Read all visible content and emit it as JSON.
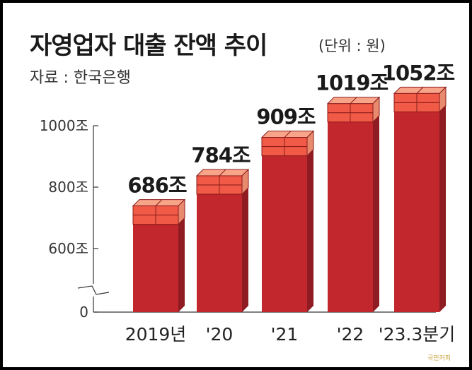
{
  "title": "자영업자 대출 잔액 추이",
  "unit_note": "(단위 : 원)",
  "source": "자료 : 한국은행",
  "credit": "국민커피",
  "colors": {
    "bar_front": "#c1272d",
    "bar_top": "#d84047",
    "brick_front": "#f05a46",
    "brick_top": "#f8a488",
    "brick_side": "#e88a6e",
    "brick_line": "#8c1c1c",
    "axis": "#333333"
  },
  "chart_data": {
    "type": "bar",
    "categories": [
      "2019년",
      "'20",
      "'21",
      "'22",
      "'23.3분기"
    ],
    "values": [
      686,
      784,
      909,
      1019,
      1052
    ],
    "data_labels": [
      "686조",
      "784조",
      "909조",
      "1019조",
      "1052조"
    ],
    "y_ticks": [
      {
        "value": 0,
        "label": "0"
      },
      {
        "value": 600,
        "label": "600조"
      },
      {
        "value": 800,
        "label": "800조"
      },
      {
        "value": 1000,
        "label": "1000조"
      }
    ],
    "axis_break": true,
    "ylim": [
      0,
      1000
    ],
    "grid": false
  }
}
